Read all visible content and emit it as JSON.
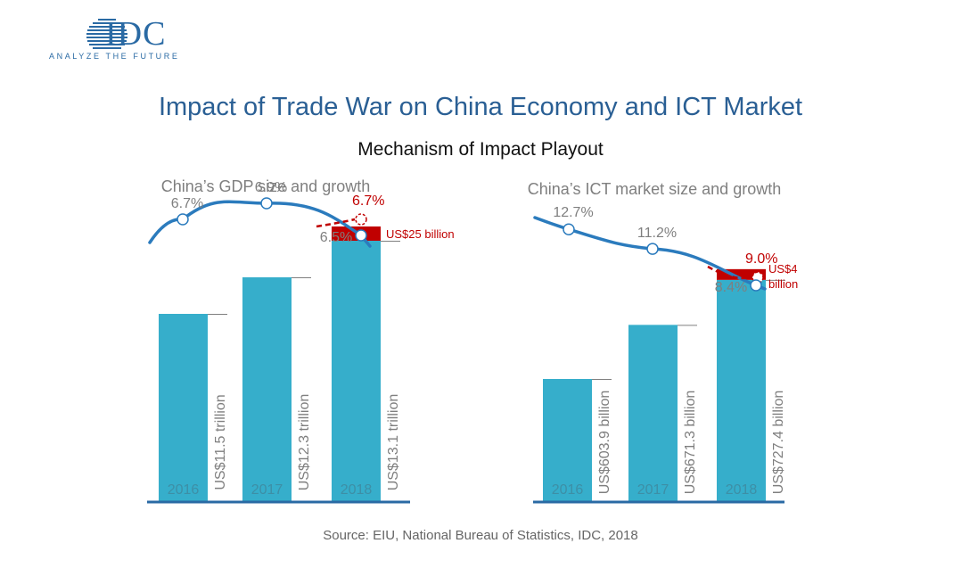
{
  "header": {
    "logo_text": "IDC",
    "logo_tagline": "ANALYZE THE FUTURE",
    "title": "Impact of Trade War on China Economy and ICT Market",
    "subtitle": "Mechanism of Impact Playout",
    "source": "Source:  EIU, National Bureau of Statistics, IDC, 2018"
  },
  "colors": {
    "bar": "#36aecb",
    "impact": "#c00000",
    "line": "#2b7bbd",
    "axis": "#2a6aa4",
    "label": "#7f7f7f",
    "title_blue": "#2a5f94"
  },
  "chart_data": [
    {
      "type": "bar",
      "title": "China’s GDP size and growth",
      "categories": [
        "2016",
        "2017",
        "2018"
      ],
      "series": [
        {
          "values": [
            11.5,
            12.3,
            13.1
          ]
        }
      ],
      "bar_labels": [
        "US$11.5 trillion",
        "US$12.3 trillion",
        "US$13.1 trillion"
      ],
      "impact": {
        "category": "2018",
        "amount_label": "US$25 billion"
      },
      "growth_line": {
        "values": [
          6.7,
          6.9,
          6.5
        ],
        "labels": [
          "6.7%",
          "6.9%",
          "6.5%"
        ],
        "without_trade_war": {
          "value": 6.7,
          "label": "6.7%"
        }
      }
    },
    {
      "type": "bar",
      "title": "China’s ICT market size and growth",
      "categories": [
        "2016",
        "2017",
        "2018"
      ],
      "series": [
        {
          "values": [
            603.9,
            671.3,
            727.4
          ]
        }
      ],
      "bar_labels": [
        "US$603.9 billion",
        "US$671.3 billion",
        "US$727.4 billion"
      ],
      "impact": {
        "category": "2018",
        "amount_label_lines": [
          "US$4",
          "billion"
        ]
      },
      "growth_line": {
        "values": [
          12.7,
          11.2,
          8.4
        ],
        "labels": [
          "12.7%",
          "11.2%",
          "8.4%"
        ],
        "without_trade_war": {
          "value": 9.0,
          "label": "9.0%"
        }
      }
    }
  ]
}
